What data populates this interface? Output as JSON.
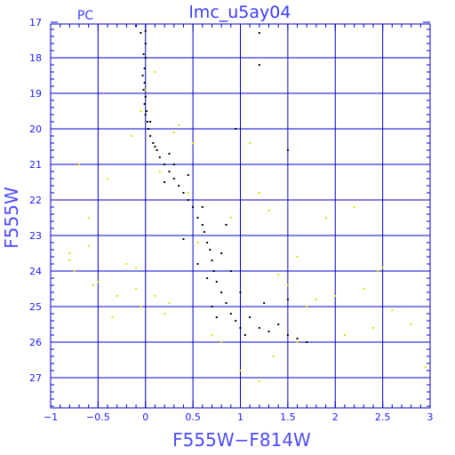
{
  "chart_data": {
    "type": "scatter",
    "title": "lmc_u5ay04",
    "annotation": "PC",
    "xlabel": "F555W−F814W",
    "ylabel": "F555W",
    "xlim": [
      -1,
      3
    ],
    "ylim": [
      27.85,
      17.05
    ],
    "y_inverted": true,
    "grid": true,
    "x_ticks": [
      -1,
      -0.5,
      0,
      0.5,
      1,
      1.5,
      2,
      2.5,
      3
    ],
    "x_tick_labels": [
      "−1",
      "−0.5",
      "0",
      "0.5",
      "1",
      "1.5",
      "2",
      "2.5",
      "3"
    ],
    "y_ticks": [
      17,
      18,
      19,
      20,
      21,
      22,
      23,
      24,
      25,
      26,
      27
    ],
    "y_tick_labels": [
      "17",
      "18",
      "19",
      "20",
      "21",
      "22",
      "23",
      "24",
      "25",
      "26",
      "27"
    ],
    "colors": {
      "frame": "#0000cc",
      "grid": "#0000cc",
      "text": "#3a3aff",
      "series_main": "#000000",
      "series_faint": "#e0e000"
    },
    "series": [
      {
        "color_key": "series_main",
        "points": [
          [
            -0.1,
            17.1
          ],
          [
            -0.05,
            17.3
          ],
          [
            0.0,
            17.25
          ],
          [
            0.0,
            17.6
          ],
          [
            -0.02,
            17.9
          ],
          [
            0.0,
            18.0
          ],
          [
            -0.01,
            18.3
          ],
          [
            -0.03,
            18.5
          ],
          [
            -0.01,
            18.7
          ],
          [
            -0.02,
            18.9
          ],
          [
            0.0,
            19.1
          ],
          [
            -0.01,
            19.3
          ],
          [
            0.01,
            19.5
          ],
          [
            0.0,
            19.6
          ],
          [
            0.02,
            19.8
          ],
          [
            0.03,
            20.0
          ],
          [
            0.05,
            20.2
          ],
          [
            0.08,
            20.4
          ],
          [
            0.1,
            20.5
          ],
          [
            0.12,
            20.6
          ],
          [
            0.15,
            20.8
          ],
          [
            0.2,
            21.0
          ],
          [
            0.25,
            21.2
          ],
          [
            0.3,
            21.4
          ],
          [
            0.35,
            21.6
          ],
          [
            0.4,
            21.8
          ],
          [
            0.45,
            22.0
          ],
          [
            0.5,
            22.2
          ],
          [
            0.55,
            22.5
          ],
          [
            0.6,
            22.7
          ],
          [
            0.62,
            22.9
          ],
          [
            0.65,
            23.2
          ],
          [
            0.68,
            23.4
          ],
          [
            0.7,
            23.7
          ],
          [
            0.72,
            24.0
          ],
          [
            0.75,
            24.3
          ],
          [
            0.8,
            24.6
          ],
          [
            0.85,
            24.9
          ],
          [
            0.9,
            25.2
          ],
          [
            0.95,
            25.4
          ],
          [
            1.0,
            25.6
          ],
          [
            1.05,
            25.8
          ],
          [
            1.1,
            25.3
          ],
          [
            1.2,
            25.6
          ],
          [
            1.3,
            25.7
          ],
          [
            1.5,
            25.8
          ],
          [
            1.6,
            25.9
          ],
          [
            1.7,
            26.0
          ],
          [
            0.55,
            23.8
          ],
          [
            0.7,
            25.0
          ],
          [
            1.0,
            24.6
          ],
          [
            0.9,
            24.0
          ],
          [
            0.4,
            23.1
          ],
          [
            0.3,
            21.0
          ],
          [
            0.6,
            22.2
          ],
          [
            1.2,
            17.3
          ],
          [
            1.2,
            18.2
          ],
          [
            0.95,
            20.0
          ],
          [
            1.5,
            20.6
          ],
          [
            1.5,
            24.8
          ],
          [
            0.2,
            21.5
          ],
          [
            0.25,
            20.7
          ],
          [
            0.05,
            19.8
          ],
          [
            0.85,
            22.7
          ],
          [
            0.8,
            23.5
          ],
          [
            1.25,
            24.9
          ],
          [
            0.65,
            24.2
          ],
          [
            0.75,
            25.3
          ],
          [
            1.4,
            25.5
          ],
          [
            0.45,
            21.3
          ]
        ]
      },
      {
        "color_key": "series_faint",
        "points": [
          [
            -0.8,
            23.7
          ],
          [
            -0.8,
            23.5
          ],
          [
            -0.75,
            24.0
          ],
          [
            -0.7,
            21.0
          ],
          [
            -0.6,
            23.3
          ],
          [
            -0.6,
            22.5
          ],
          [
            -0.55,
            24.4
          ],
          [
            -0.5,
            24.3
          ],
          [
            -0.4,
            21.4
          ],
          [
            -0.35,
            25.3
          ],
          [
            -0.3,
            24.7
          ],
          [
            -0.2,
            23.8
          ],
          [
            -0.15,
            20.2
          ],
          [
            -0.1,
            24.5
          ],
          [
            -0.1,
            23.9
          ],
          [
            -0.05,
            25.0
          ],
          [
            0.1,
            24.7
          ],
          [
            0.2,
            25.2
          ],
          [
            0.25,
            24.9
          ],
          [
            0.3,
            20.1
          ],
          [
            0.45,
            21.8
          ],
          [
            0.5,
            20.4
          ],
          [
            0.55,
            23.2
          ],
          [
            0.9,
            22.5
          ],
          [
            1.1,
            20.4
          ],
          [
            1.2,
            21.8
          ],
          [
            1.3,
            22.3
          ],
          [
            1.4,
            24.1
          ],
          [
            1.5,
            24.4
          ],
          [
            1.6,
            23.6
          ],
          [
            1.7,
            25.0
          ],
          [
            1.8,
            24.8
          ],
          [
            1.9,
            22.5
          ],
          [
            2.0,
            24.7
          ],
          [
            2.1,
            25.8
          ],
          [
            2.2,
            22.2
          ],
          [
            2.3,
            24.5
          ],
          [
            2.4,
            25.6
          ],
          [
            2.45,
            24.0
          ],
          [
            2.5,
            23.9
          ],
          [
            2.6,
            25.1
          ],
          [
            2.8,
            25.5
          ],
          [
            2.95,
            26.7
          ],
          [
            1.0,
            26.8
          ],
          [
            1.2,
            27.1
          ],
          [
            1.35,
            26.4
          ],
          [
            1.6,
            26.0
          ],
          [
            0.15,
            21.2
          ],
          [
            0.35,
            19.9
          ],
          [
            0.1,
            18.4
          ],
          [
            0.0,
            18.9
          ],
          [
            -0.05,
            19.5
          ],
          [
            0.7,
            25.8
          ],
          [
            0.8,
            26.0
          ]
        ]
      }
    ]
  }
}
